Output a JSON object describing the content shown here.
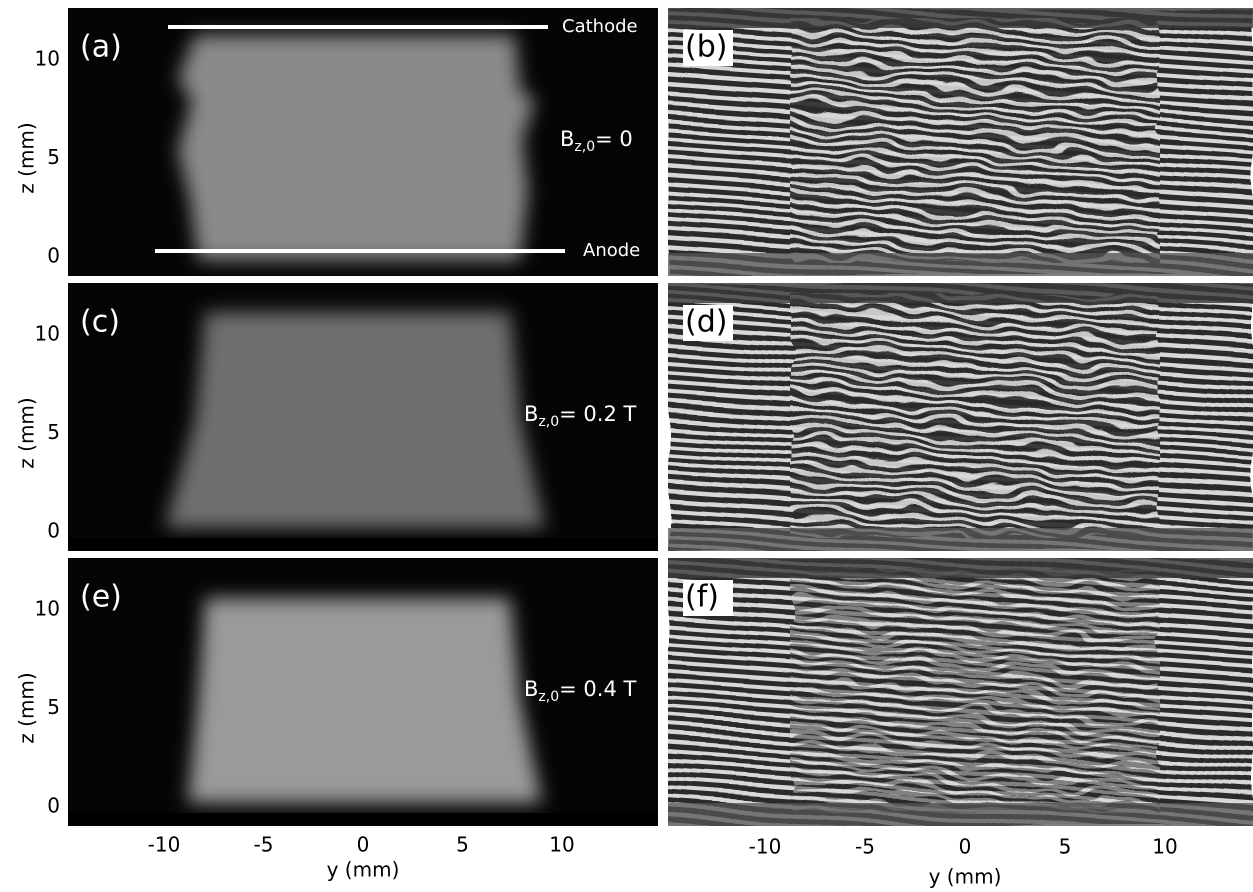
{
  "figure": {
    "panels": [
      {
        "label": "(a)",
        "annotation": {
          "symbol": "B",
          "subscript": "z,0",
          "rest": "= 0"
        }
      },
      {
        "label": "(b)"
      },
      {
        "label": "(c)",
        "annotation": {
          "symbol": "B",
          "subscript": "z,0",
          "rest": "= 0.2 T"
        }
      },
      {
        "label": "(d)"
      },
      {
        "label": "(e)",
        "annotation": {
          "symbol": "B",
          "subscript": "z,0",
          "rest": "= 0.4 T"
        }
      },
      {
        "label": "(f)"
      }
    ],
    "electrodes": {
      "top": "Cathode",
      "bottom": "Anode"
    },
    "left_axes": {
      "ylabel": "z (mm)",
      "yticks": [
        0,
        5,
        10
      ],
      "xlabel": "y (mm)",
      "xticks": [
        -10,
        -5,
        0,
        5,
        10
      ]
    },
    "right_axes": {
      "xlabel": "y (mm)",
      "xticks": [
        -10,
        -5,
        0,
        5,
        10
      ]
    }
  }
}
